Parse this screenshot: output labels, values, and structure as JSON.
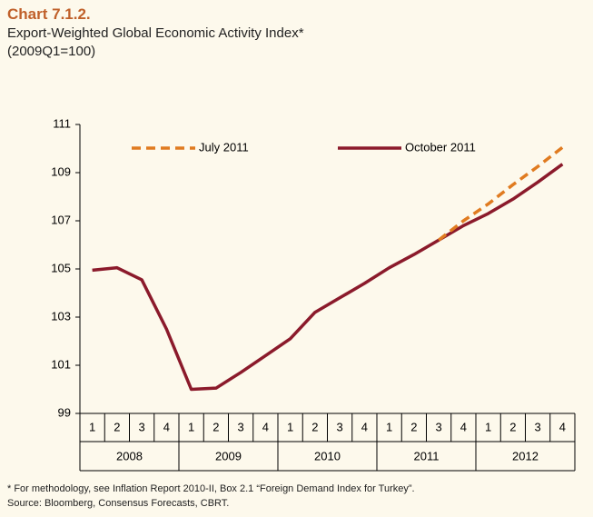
{
  "title": "Chart 7.1.2.",
  "subtitle": "Export-Weighted Global Economic Activity Index*",
  "subtitle2": "(2009Q1=100)",
  "footnote": "* For methodology, see Inflation Report 2010-II, Box 2.1 “Foreign Demand Index for Turkey”.",
  "source": "Source: Bloomberg, Consensus Forecasts, CBRT.",
  "chart_data": {
    "type": "line",
    "categories": [
      "1",
      "2",
      "3",
      "4",
      "1",
      "2",
      "3",
      "4",
      "1",
      "2",
      "3",
      "4",
      "1",
      "2",
      "3",
      "4",
      "1",
      "2",
      "3",
      "4"
    ],
    "years": [
      "2008",
      "2009",
      "2010",
      "2011",
      "2012"
    ],
    "ylim": [
      99,
      111
    ],
    "yticks": [
      99,
      101,
      103,
      105,
      107,
      109,
      111
    ],
    "series": [
      {
        "name": "July 2011",
        "color": "#e07b20",
        "dashed": true,
        "values": [
          null,
          null,
          null,
          null,
          null,
          null,
          null,
          null,
          null,
          null,
          null,
          null,
          null,
          null,
          106.2,
          107.0,
          107.7,
          108.5,
          109.25,
          110.05
        ]
      },
      {
        "name": "October 2011",
        "color": "#8b1a2b",
        "dashed": false,
        "values": [
          104.95,
          105.05,
          104.55,
          102.5,
          100.0,
          100.05,
          100.7,
          101.4,
          102.1,
          103.2,
          103.8,
          104.4,
          105.05,
          105.6,
          106.2,
          106.8,
          107.3,
          107.9,
          108.6,
          109.35
        ]
      }
    ]
  }
}
